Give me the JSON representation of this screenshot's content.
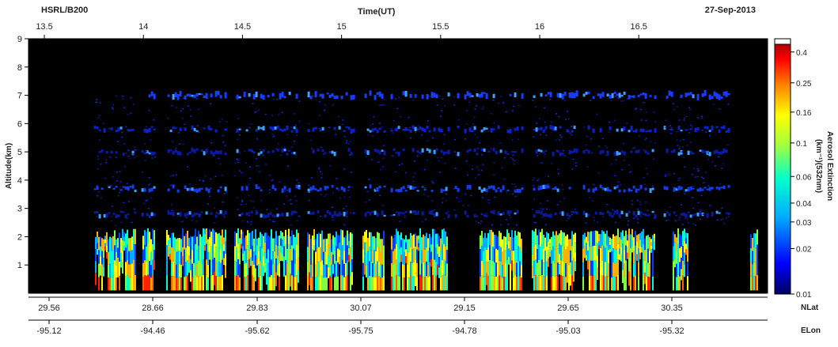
{
  "header": {
    "instrument": "HSRL/B200",
    "date": "27-Sep-2013"
  },
  "chart_data": {
    "type": "heatmap",
    "title": "",
    "top_axis": {
      "label": "Time(UT)",
      "ticks": [
        "13.5",
        "14",
        "14.5",
        "15",
        "15.5",
        "16",
        "16.5"
      ],
      "tick_values": [
        13.5,
        14,
        14.5,
        15,
        15.5,
        16,
        16.5
      ],
      "range": [
        13.42,
        17.15
      ]
    },
    "y_axis": {
      "label": "Altitude(km)",
      "ticks": [
        "1",
        "2",
        "3",
        "4",
        "5",
        "6",
        "7",
        "8",
        "9"
      ],
      "range": [
        0,
        9
      ]
    },
    "bottom_axis_nlat": {
      "label": "NLat",
      "ticks": [
        "29.56",
        "28.66",
        "29.83",
        "30.07",
        "29.15",
        "29.65",
        "30.35"
      ]
    },
    "bottom_axis_elon": {
      "label": "ELon",
      "ticks": [
        "-95.12",
        "-94.46",
        "-95.62",
        "-95.75",
        "-94.78",
        "-95.03",
        "-95.32"
      ]
    },
    "colorbar": {
      "label_line1": "Aerosol Extinction",
      "label_line2": "(km⁻¹)(532nm)",
      "ticks": [
        "0.4",
        "0.25",
        "0.16",
        "0.1",
        "0.06",
        "0.04",
        "0.03",
        "0.02",
        "0.01"
      ],
      "tick_values": [
        0.4,
        0.25,
        0.16,
        0.1,
        0.06,
        0.04,
        0.03,
        0.02,
        0.01
      ],
      "scale": "log",
      "range": [
        0.01,
        0.45
      ]
    },
    "layers": {
      "cloud_layer_altitudes_km": [
        7.0,
        5.8,
        5.0,
        3.7,
        2.8
      ],
      "boundary_layer_top_km": 2.1,
      "data_start_time": 13.75,
      "data_end_time": 16.95
    },
    "colors": {
      "background": "#000000",
      "low": "#0000a0",
      "mid": "#00c8ff",
      "high": "#ffff00",
      "max": "#a00000"
    }
  }
}
